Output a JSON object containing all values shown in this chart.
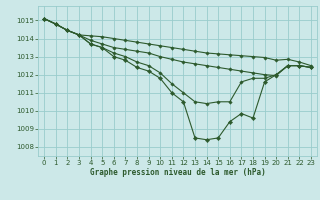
{
  "background_color": "#cce8e8",
  "grid_color": "#99cccc",
  "line_color": "#2d5a2d",
  "title": "Graphe pression niveau de la mer (hPa)",
  "xlim": [
    -0.5,
    23.5
  ],
  "ylim": [
    1007.5,
    1015.8
  ],
  "xticks": [
    0,
    1,
    2,
    3,
    4,
    5,
    6,
    7,
    8,
    9,
    10,
    11,
    12,
    13,
    14,
    15,
    16,
    17,
    18,
    19,
    20,
    21,
    22,
    23
  ],
  "yticks": [
    1008,
    1009,
    1010,
    1011,
    1012,
    1013,
    1014,
    1015
  ],
  "series": [
    {
      "x": [
        0,
        1,
        2,
        3,
        4,
        5,
        6,
        7,
        8,
        9,
        10,
        11,
        12,
        13,
        14,
        15,
        16,
        17,
        18,
        19,
        20,
        21,
        22,
        23
      ],
      "y": [
        1015.1,
        1014.8,
        1014.45,
        1014.2,
        1014.15,
        1014.1,
        1014.0,
        1013.9,
        1013.8,
        1013.7,
        1013.6,
        1013.5,
        1013.4,
        1013.3,
        1013.2,
        1013.15,
        1013.1,
        1013.05,
        1013.0,
        1012.95,
        1012.8,
        1012.85,
        1012.7,
        1012.5
      ]
    },
    {
      "x": [
        0,
        1,
        2,
        3,
        4,
        5,
        6,
        7,
        8,
        9,
        10,
        11,
        12,
        13,
        14,
        15,
        16,
        17,
        18,
        19,
        20,
        21,
        22,
        23
      ],
      "y": [
        1015.1,
        1014.8,
        1014.45,
        1014.2,
        1013.9,
        1013.7,
        1013.5,
        1013.4,
        1013.3,
        1013.2,
        1013.0,
        1012.85,
        1012.7,
        1012.6,
        1012.5,
        1012.4,
        1012.3,
        1012.2,
        1012.1,
        1012.0,
        1011.95,
        1012.5,
        1012.5,
        1012.4
      ]
    },
    {
      "x": [
        0,
        1,
        2,
        3,
        4,
        5,
        6,
        7,
        8,
        9,
        10,
        11,
        12,
        13,
        14,
        15,
        16,
        17,
        18,
        19,
        20,
        21,
        22,
        23
      ],
      "y": [
        1015.1,
        1014.8,
        1014.45,
        1014.2,
        1013.7,
        1013.5,
        1013.2,
        1013.0,
        1012.7,
        1012.5,
        1012.1,
        1011.5,
        1011.0,
        1010.5,
        1010.4,
        1010.5,
        1010.5,
        1011.6,
        1011.8,
        1011.8,
        1012.0,
        1012.5,
        1012.5,
        1012.4
      ]
    },
    {
      "x": [
        0,
        1,
        2,
        3,
        4,
        5,
        6,
        7,
        8,
        9,
        10,
        11,
        12,
        13,
        14,
        15,
        16,
        17,
        18,
        19,
        20,
        21,
        22,
        23
      ],
      "y": [
        1015.1,
        1014.8,
        1014.45,
        1014.2,
        1013.7,
        1013.5,
        1013.0,
        1012.8,
        1012.4,
        1012.2,
        1011.8,
        1011.0,
        1010.5,
        1008.5,
        1008.4,
        1008.5,
        1009.4,
        1009.85,
        1009.6,
        1011.6,
        1012.0,
        1012.5,
        1012.5,
        1012.4
      ]
    }
  ]
}
